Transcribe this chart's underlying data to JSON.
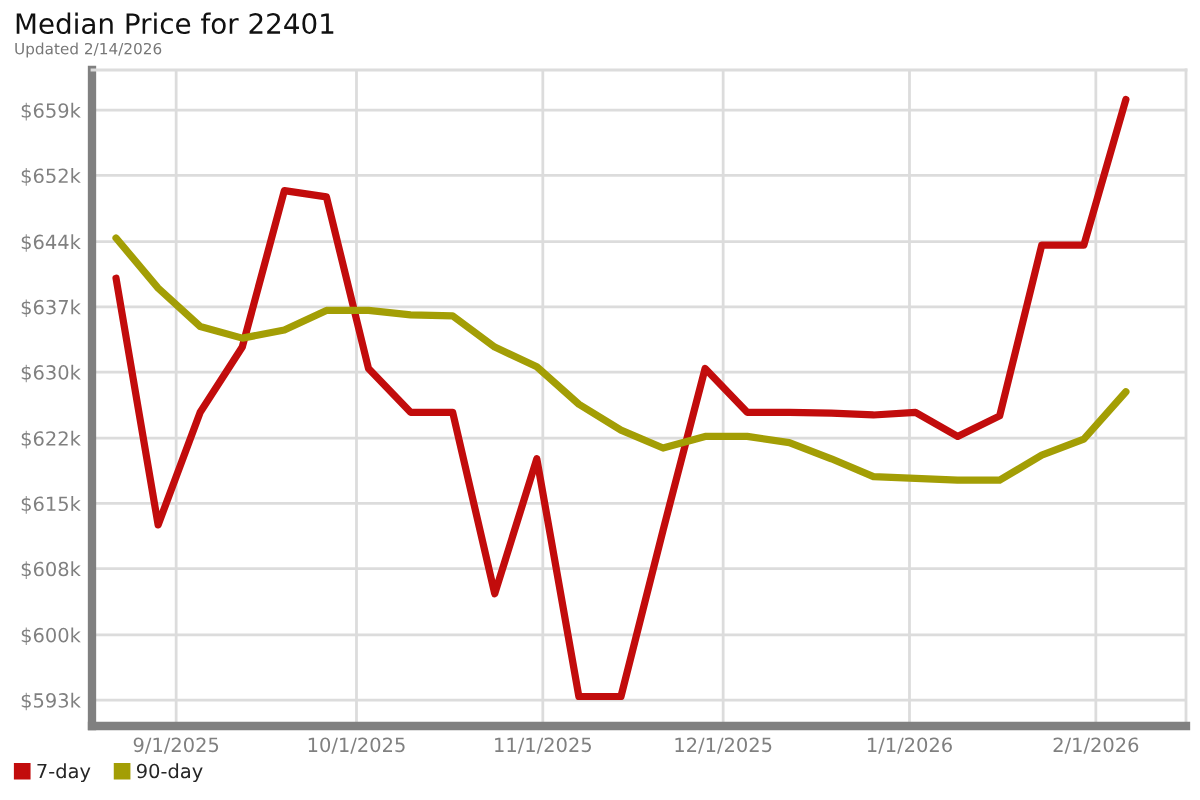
{
  "chart_data": {
    "type": "line",
    "title": "Median Price for 22401",
    "subtitle": "Updated 2/14/2026",
    "x": [
      "2025-08-22",
      "2025-08-29",
      "2025-09-05",
      "2025-09-12",
      "2025-09-19",
      "2025-09-26",
      "2025-10-03",
      "2025-10-10",
      "2025-10-17",
      "2025-10-24",
      "2025-10-31",
      "2025-11-07",
      "2025-11-14",
      "2025-11-21",
      "2025-11-28",
      "2025-12-05",
      "2025-12-12",
      "2025-12-19",
      "2025-12-26",
      "2026-01-02",
      "2026-01-09",
      "2026-01-16",
      "2026-01-23",
      "2026-01-30",
      "2026-02-06"
    ],
    "series": [
      {
        "name": "7-day",
        "color": "#c20c0c",
        "values": [
          640.2,
          612.6,
          625.2,
          632.5,
          650.0,
          649.3,
          630.1,
          625.2,
          625.2,
          604.9,
          620.0,
          593.4,
          593.4,
          612.0,
          630.1,
          625.2,
          625.2,
          625.1,
          624.9,
          625.2,
          622.5,
          624.8,
          643.9,
          643.9,
          660.2
        ]
      },
      {
        "name": "90-day",
        "color": "#a39e05",
        "values": [
          644.7,
          639.1,
          634.8,
          633.5,
          634.4,
          636.6,
          636.6,
          636.1,
          636.0,
          632.5,
          630.3,
          626.1,
          623.2,
          621.2,
          622.5,
          622.5,
          621.8,
          620.0,
          618.0,
          617.8,
          617.6,
          617.6,
          620.4,
          622.2,
          627.5
        ]
      }
    ],
    "xlim": [
      "2025-08-18",
      "2026-02-16"
    ],
    "xticks": [
      {
        "value": "2025-09-01",
        "label": "9/1/2025"
      },
      {
        "value": "2025-10-01",
        "label": "10/1/2025"
      },
      {
        "value": "2025-11-01",
        "label": "11/1/2025"
      },
      {
        "value": "2025-12-01",
        "label": "12/1/2025"
      },
      {
        "value": "2026-01-01",
        "label": "1/1/2026"
      },
      {
        "value": "2026-02-01",
        "label": "2/1/2026"
      }
    ],
    "ylim": [
      590.1,
      663.5
    ],
    "yticks": [
      {
        "value": 593,
        "label": "$593k"
      },
      {
        "value": 600.3,
        "label": "$600k"
      },
      {
        "value": 607.7,
        "label": "$608k"
      },
      {
        "value": 615,
        "label": "$615k"
      },
      {
        "value": 622.3,
        "label": "$622k"
      },
      {
        "value": 629.7,
        "label": "$630k"
      },
      {
        "value": 637,
        "label": "$637k"
      },
      {
        "value": 644.3,
        "label": "$644k"
      },
      {
        "value": 651.7,
        "label": "$652k"
      },
      {
        "value": 659,
        "label": "$659k"
      }
    ],
    "grid": true,
    "legend": "bottom left",
    "line_style": "solid"
  }
}
